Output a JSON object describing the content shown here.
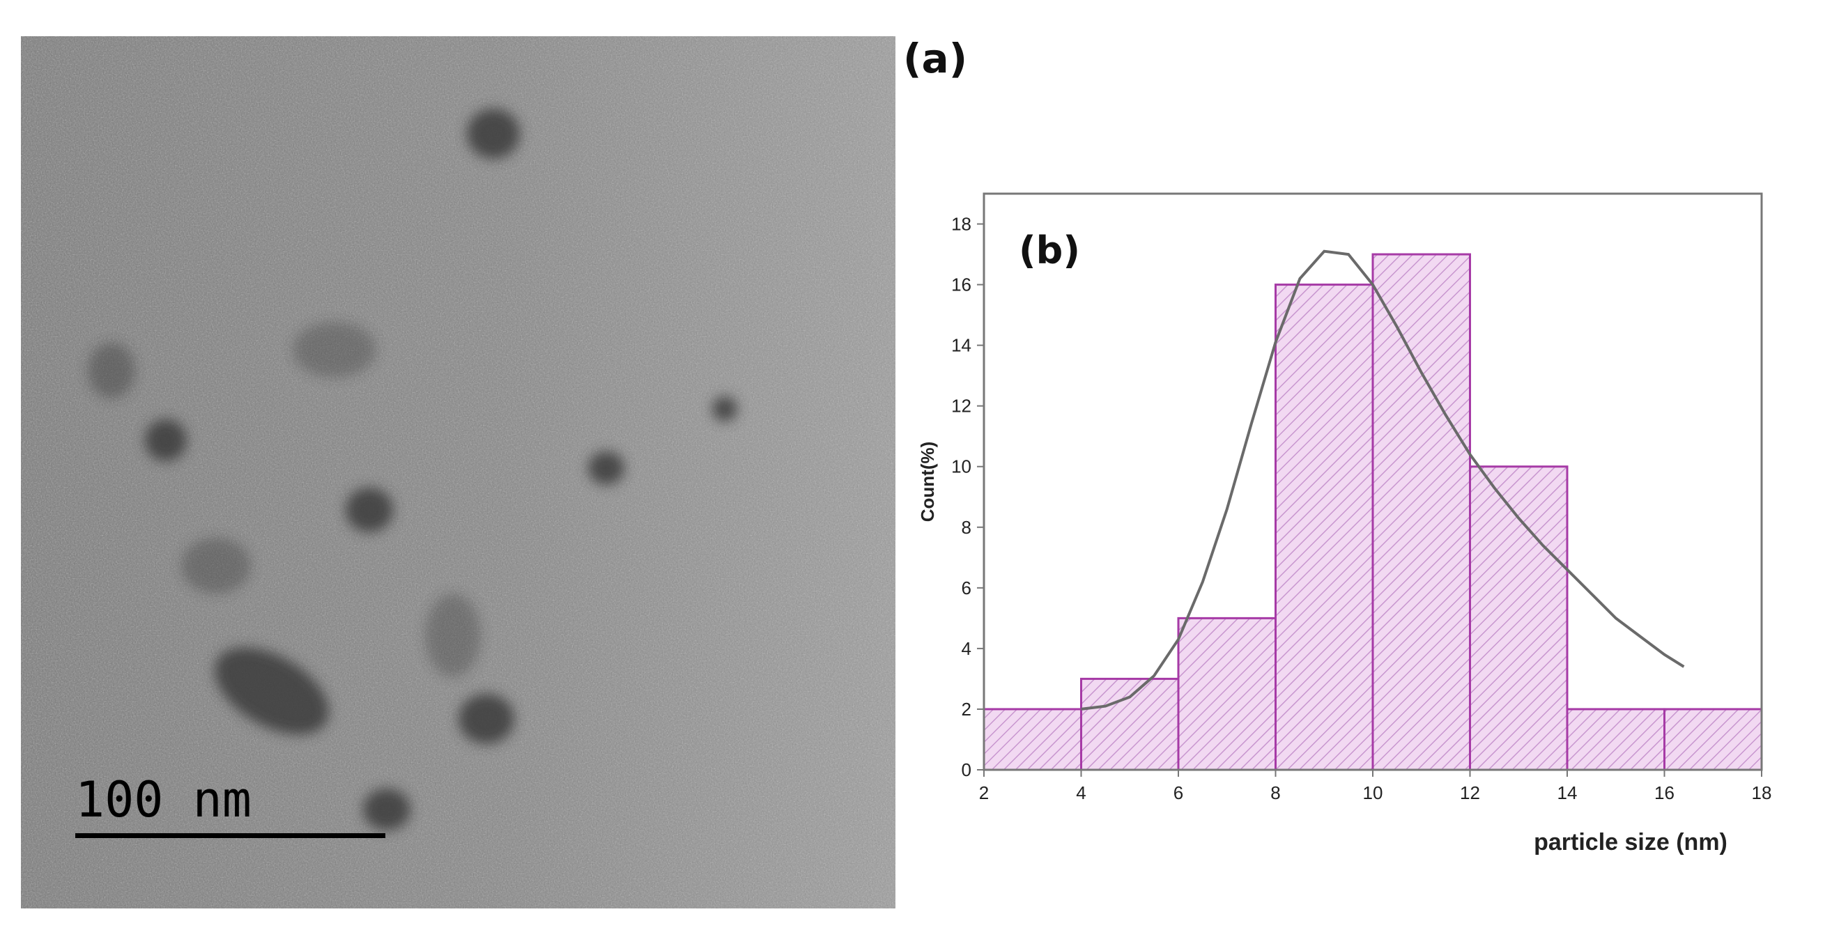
{
  "panel_a": {
    "label": "(a)",
    "scale_bar_text": "100 nm"
  },
  "colors": {
    "bar_fill": "#f2d9f2",
    "bar_edge": "#a63aa6",
    "hatch": "#c896cf",
    "fit_curve": "#6a6a6a",
    "axes": "#777777",
    "micrograph_base": "#8c8c8c"
  },
  "chart_data": {
    "type": "bar",
    "panel_label": "(b)",
    "xlabel": "particle size (nm)",
    "ylabel": "Count(%)",
    "xlim": [
      2,
      18
    ],
    "ylim": [
      0,
      19
    ],
    "xticks": [
      2,
      4,
      6,
      8,
      10,
      12,
      14,
      16,
      18
    ],
    "yticks": [
      0,
      2,
      4,
      6,
      8,
      10,
      12,
      14,
      16,
      18
    ],
    "bins": [
      {
        "start": 2,
        "end": 4,
        "value": 2
      },
      {
        "start": 4,
        "end": 6,
        "value": 3
      },
      {
        "start": 6,
        "end": 8,
        "value": 5
      },
      {
        "start": 8,
        "end": 10,
        "value": 16
      },
      {
        "start": 10,
        "end": 12,
        "value": 17
      },
      {
        "start": 12,
        "end": 14,
        "value": 10
      },
      {
        "start": 14,
        "end": 16,
        "value": 2
      },
      {
        "start": 16,
        "end": 18,
        "value": 2
      }
    ],
    "fit_curve": {
      "type": "lognormal",
      "points": [
        [
          4.0,
          2.0
        ],
        [
          4.5,
          2.1
        ],
        [
          5.0,
          2.4
        ],
        [
          5.5,
          3.1
        ],
        [
          6.0,
          4.3
        ],
        [
          6.5,
          6.2
        ],
        [
          7.0,
          8.6
        ],
        [
          7.5,
          11.4
        ],
        [
          8.0,
          14.1
        ],
        [
          8.5,
          16.2
        ],
        [
          9.0,
          17.1
        ],
        [
          9.5,
          17.0
        ],
        [
          10.0,
          16.0
        ],
        [
          10.5,
          14.6
        ],
        [
          11.0,
          13.1
        ],
        [
          11.5,
          11.7
        ],
        [
          12.0,
          10.4
        ],
        [
          12.5,
          9.3
        ],
        [
          13.0,
          8.3
        ],
        [
          13.5,
          7.4
        ],
        [
          14.0,
          6.6
        ],
        [
          14.5,
          5.8
        ],
        [
          15.0,
          5.0
        ],
        [
          15.5,
          4.4
        ],
        [
          16.0,
          3.8
        ],
        [
          16.4,
          3.4
        ]
      ]
    }
  }
}
